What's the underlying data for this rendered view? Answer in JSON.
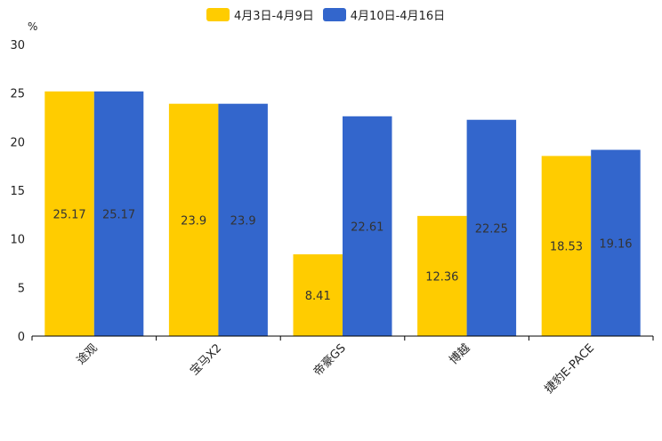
{
  "chart_data": {
    "type": "bar",
    "title": "",
    "unit_label": "%",
    "xlabel": "",
    "ylabel": "",
    "ylim": [
      0,
      30
    ],
    "yticks": [
      0,
      5,
      10,
      15,
      20,
      25,
      30
    ],
    "categories": [
      "途观",
      "宝马X2",
      "帝豪GS",
      "博越",
      "捷豹E-PACE"
    ],
    "series": [
      {
        "name": "4月3日-4月9日",
        "color": "#FFCC00",
        "values": [
          25.17,
          23.9,
          8.41,
          12.36,
          18.53
        ]
      },
      {
        "name": "4月10日-4月16日",
        "color": "#3366CC",
        "values": [
          25.17,
          23.9,
          22.61,
          22.25,
          19.16
        ]
      }
    ],
    "legend_position": "top-center",
    "grid": false
  }
}
